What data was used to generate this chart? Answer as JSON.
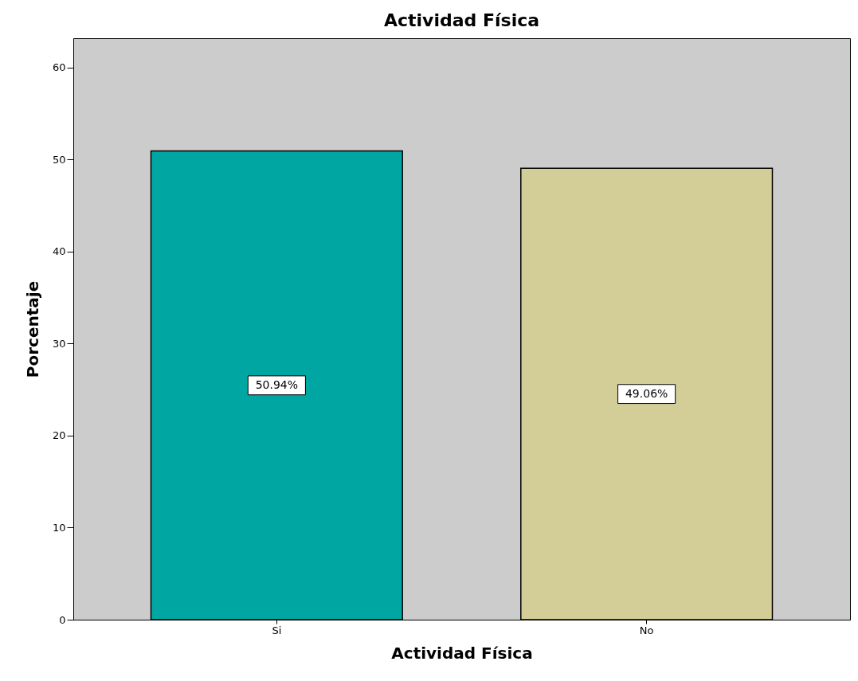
{
  "chart_data": {
    "type": "bar",
    "title": "Actividad Física",
    "xlabel": "Actividad Física",
    "ylabel": "Porcentaje",
    "categories": [
      "Si",
      "No"
    ],
    "values": [
      50.94,
      49.06
    ],
    "colors": [
      "#00a6a2",
      "#d3ce97"
    ],
    "value_labels": [
      "50.94%",
      "49.06%"
    ],
    "ylim": [
      0,
      63.2
    ],
    "yticks": [
      0,
      10,
      20,
      30,
      40,
      50,
      60
    ],
    "grid": false
  }
}
